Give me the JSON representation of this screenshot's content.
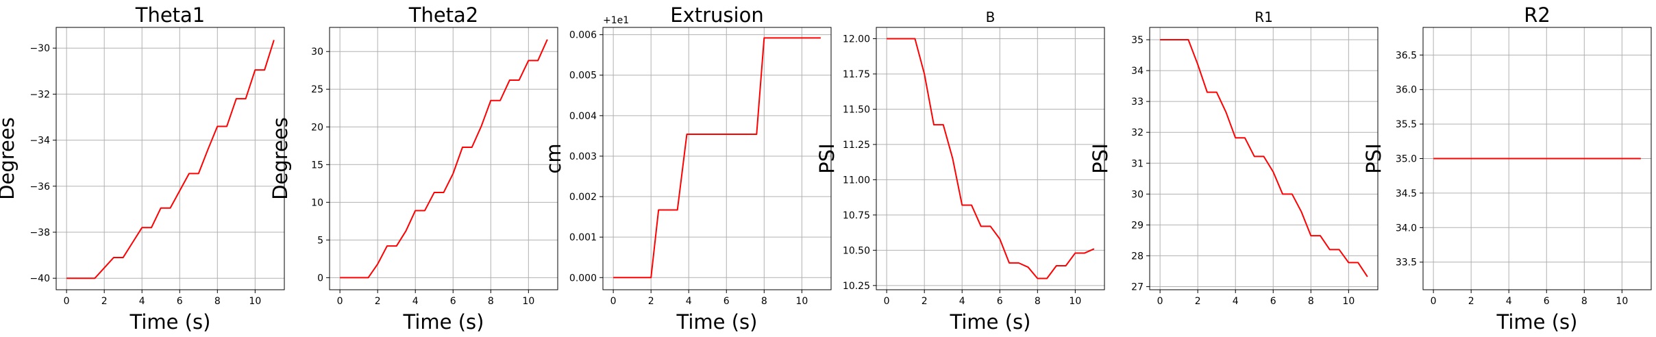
{
  "colors": {
    "series": "#ff0000",
    "grid": "#b0b0b0",
    "axis": "#000000"
  },
  "chart_data": [
    {
      "type": "line",
      "title": "Theta1",
      "xlabel": "Time (s)",
      "ylabel": "Degrees",
      "xlim": [
        -0.55,
        11.55
      ],
      "ylim": [
        -40.5,
        -29.1
      ],
      "xticks": [
        0,
        2,
        4,
        6,
        8,
        10
      ],
      "xtick_labels": [
        "0",
        "2",
        "4",
        "6",
        "8",
        "10"
      ],
      "yticks": [
        -40,
        -38,
        -36,
        -34,
        -32,
        -30
      ],
      "ytick_labels": [
        "−40",
        "−38",
        "−36",
        "−34",
        "−32",
        "−30"
      ],
      "grid": true,
      "series": [
        {
          "color": "#ff0000",
          "x": [
            0,
            1.5,
            2.5,
            3,
            3.5,
            4,
            4.5,
            5,
            5.5,
            6,
            6.5,
            7,
            7.5,
            8,
            8.5,
            9,
            9.5,
            10,
            10.5,
            11
          ],
          "y": [
            -40,
            -40,
            -39.1,
            -39.1,
            -38.45,
            -37.8,
            -37.8,
            -36.95,
            -36.95,
            -36.2,
            -35.45,
            -35.45,
            -34.4,
            -33.4,
            -33.4,
            -32.2,
            -32.2,
            -30.95,
            -30.95,
            -29.65
          ]
        }
      ]
    },
    {
      "type": "line",
      "title": "Theta2",
      "xlabel": "Time (s)",
      "ylabel": "Degrees",
      "xlim": [
        -0.55,
        11.55
      ],
      "ylim": [
        -1.6,
        33.2
      ],
      "xticks": [
        0,
        2,
        4,
        6,
        8,
        10
      ],
      "xtick_labels": [
        "0",
        "2",
        "4",
        "6",
        "8",
        "10"
      ],
      "yticks": [
        0,
        5,
        10,
        15,
        20,
        25,
        30
      ],
      "ytick_labels": [
        "0",
        "5",
        "10",
        "15",
        "20",
        "25",
        "30"
      ],
      "grid": true,
      "series": [
        {
          "color": "#ff0000",
          "x": [
            0,
            1.5,
            2,
            2.5,
            3,
            3.5,
            4,
            4.5,
            5,
            5.5,
            6,
            6.5,
            7,
            7.5,
            8,
            8.5,
            9,
            9.5,
            10,
            10.5,
            11
          ],
          "y": [
            0,
            0,
            1.8,
            4.2,
            4.2,
            6.2,
            8.9,
            8.9,
            11.3,
            11.3,
            13.8,
            17.3,
            17.3,
            20.1,
            23.5,
            23.5,
            26.2,
            26.2,
            28.8,
            28.8,
            31.6
          ]
        }
      ]
    },
    {
      "type": "line",
      "title": "Extrusion",
      "xlabel": "Time (s)",
      "ylabel": "cm",
      "offset_text": "+1e1",
      "xlim": [
        -0.55,
        11.55
      ],
      "ylim": [
        -0.0003,
        0.00618
      ],
      "xticks": [
        0,
        2,
        4,
        6,
        8,
        10
      ],
      "xtick_labels": [
        "0",
        "2",
        "4",
        "6",
        "8",
        "10"
      ],
      "yticks": [
        0,
        0.001,
        0.002,
        0.003,
        0.004,
        0.005,
        0.006
      ],
      "ytick_labels": [
        "0.000",
        "0.001",
        "0.002",
        "0.003",
        "0.004",
        "0.005",
        "0.006"
      ],
      "grid": true,
      "series": [
        {
          "color": "#ff0000",
          "x": [
            0,
            2,
            2.4,
            3.4,
            3.9,
            7.6,
            8,
            11
          ],
          "y": [
            0,
            0,
            0.00167,
            0.00167,
            0.00354,
            0.00354,
            0.00592,
            0.00592
          ]
        }
      ]
    },
    {
      "type": "line",
      "title": "B",
      "xlabel": "Time (s)",
      "ylabel": "PSI",
      "xlim": [
        -0.55,
        11.55
      ],
      "ylim": [
        10.22,
        12.08
      ],
      "xticks": [
        0,
        2,
        4,
        6,
        8,
        10
      ],
      "xtick_labels": [
        "0",
        "2",
        "4",
        "6",
        "8",
        "10"
      ],
      "yticks": [
        10.25,
        10.5,
        10.75,
        11.0,
        11.25,
        11.5,
        11.75,
        12.0
      ],
      "ytick_labels": [
        "10.25",
        "10.50",
        "10.75",
        "11.00",
        "11.25",
        "11.50",
        "11.75",
        "12.00"
      ],
      "grid": true,
      "series": [
        {
          "color": "#ff0000",
          "x": [
            0,
            1.5,
            2,
            2.5,
            3,
            3.5,
            4,
            4.5,
            5,
            5.5,
            6,
            6.5,
            7,
            7.5,
            8,
            8.5,
            9,
            9.5,
            10,
            10.5,
            11
          ],
          "y": [
            12,
            12,
            11.75,
            11.39,
            11.39,
            11.15,
            10.82,
            10.82,
            10.67,
            10.67,
            10.58,
            10.41,
            10.41,
            10.38,
            10.3,
            10.3,
            10.39,
            10.39,
            10.48,
            10.48,
            10.51
          ]
        }
      ]
    },
    {
      "type": "line",
      "title": "R1",
      "xlabel": "",
      "ylabel": "PSI",
      "xlim": [
        -0.55,
        11.55
      ],
      "ylim": [
        26.9,
        35.4
      ],
      "xticks": [
        0,
        2,
        4,
        6,
        8,
        10
      ],
      "xtick_labels": [
        "0",
        "2",
        "4",
        "6",
        "8",
        "10"
      ],
      "yticks": [
        27,
        28,
        29,
        30,
        31,
        32,
        33,
        34,
        35
      ],
      "ytick_labels": [
        "27",
        "28",
        "29",
        "30",
        "31",
        "32",
        "33",
        "34",
        "35"
      ],
      "grid": true,
      "series": [
        {
          "color": "#ff0000",
          "x": [
            0,
            1.5,
            2,
            2.5,
            3,
            3.5,
            4,
            4.5,
            5,
            5.5,
            6,
            6.5,
            7,
            7.5,
            8,
            8.5,
            9,
            9.5,
            10,
            10.5,
            11
          ],
          "y": [
            35,
            35,
            34.2,
            33.3,
            33.3,
            32.65,
            31.82,
            31.82,
            31.22,
            31.22,
            30.72,
            30,
            30,
            29.42,
            28.65,
            28.65,
            28.2,
            28.2,
            27.78,
            27.78,
            27.32
          ]
        }
      ]
    },
    {
      "type": "line",
      "title": "R2",
      "xlabel": "Time (s)",
      "ylabel": "PSI",
      "xlim": [
        -0.55,
        11.55
      ],
      "ylim": [
        33.1,
        36.9
      ],
      "xticks": [
        0,
        2,
        4,
        6,
        8,
        10
      ],
      "xtick_labels": [
        "0",
        "2",
        "4",
        "6",
        "8",
        "10"
      ],
      "yticks": [
        33.5,
        34.0,
        34.5,
        35.0,
        35.5,
        36.0,
        36.5
      ],
      "ytick_labels": [
        "33.5",
        "34.0",
        "34.5",
        "35.0",
        "35.5",
        "36.0",
        "36.5"
      ],
      "grid": true,
      "series": [
        {
          "color": "#ff0000",
          "x": [
            0,
            11
          ],
          "y": [
            35,
            35
          ]
        }
      ]
    }
  ]
}
